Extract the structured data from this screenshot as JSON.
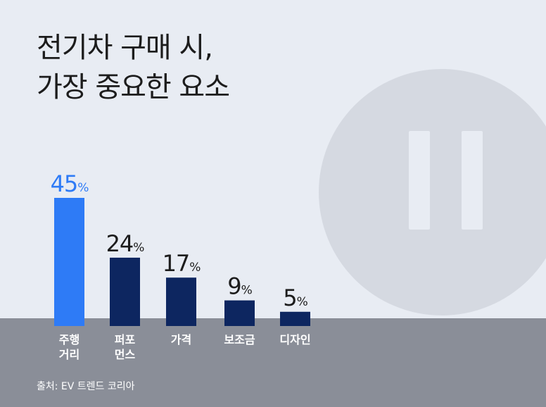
{
  "title_lines": [
    "전기차 구매 시,",
    "가장 중요한 요소"
  ],
  "source": "출처: EV 트렌드 코리아",
  "colors": {
    "highlight": "#2e7bf6",
    "bar": "#0d2660",
    "background": "#e8ecf3",
    "ground": "#8a8e98",
    "value_text": "#1c1c1c"
  },
  "chart_data": {
    "type": "bar",
    "categories": [
      [
        "주행",
        "거리"
      ],
      [
        "퍼포",
        "먼스"
      ],
      [
        "가격"
      ],
      [
        "보조금"
      ],
      [
        "디자인"
      ]
    ],
    "values": [
      45,
      24,
      17,
      9,
      5
    ],
    "value_suffix": "%",
    "highlight_index": 0,
    "ylim": [
      0,
      45
    ],
    "grid": false,
    "legend": false
  }
}
